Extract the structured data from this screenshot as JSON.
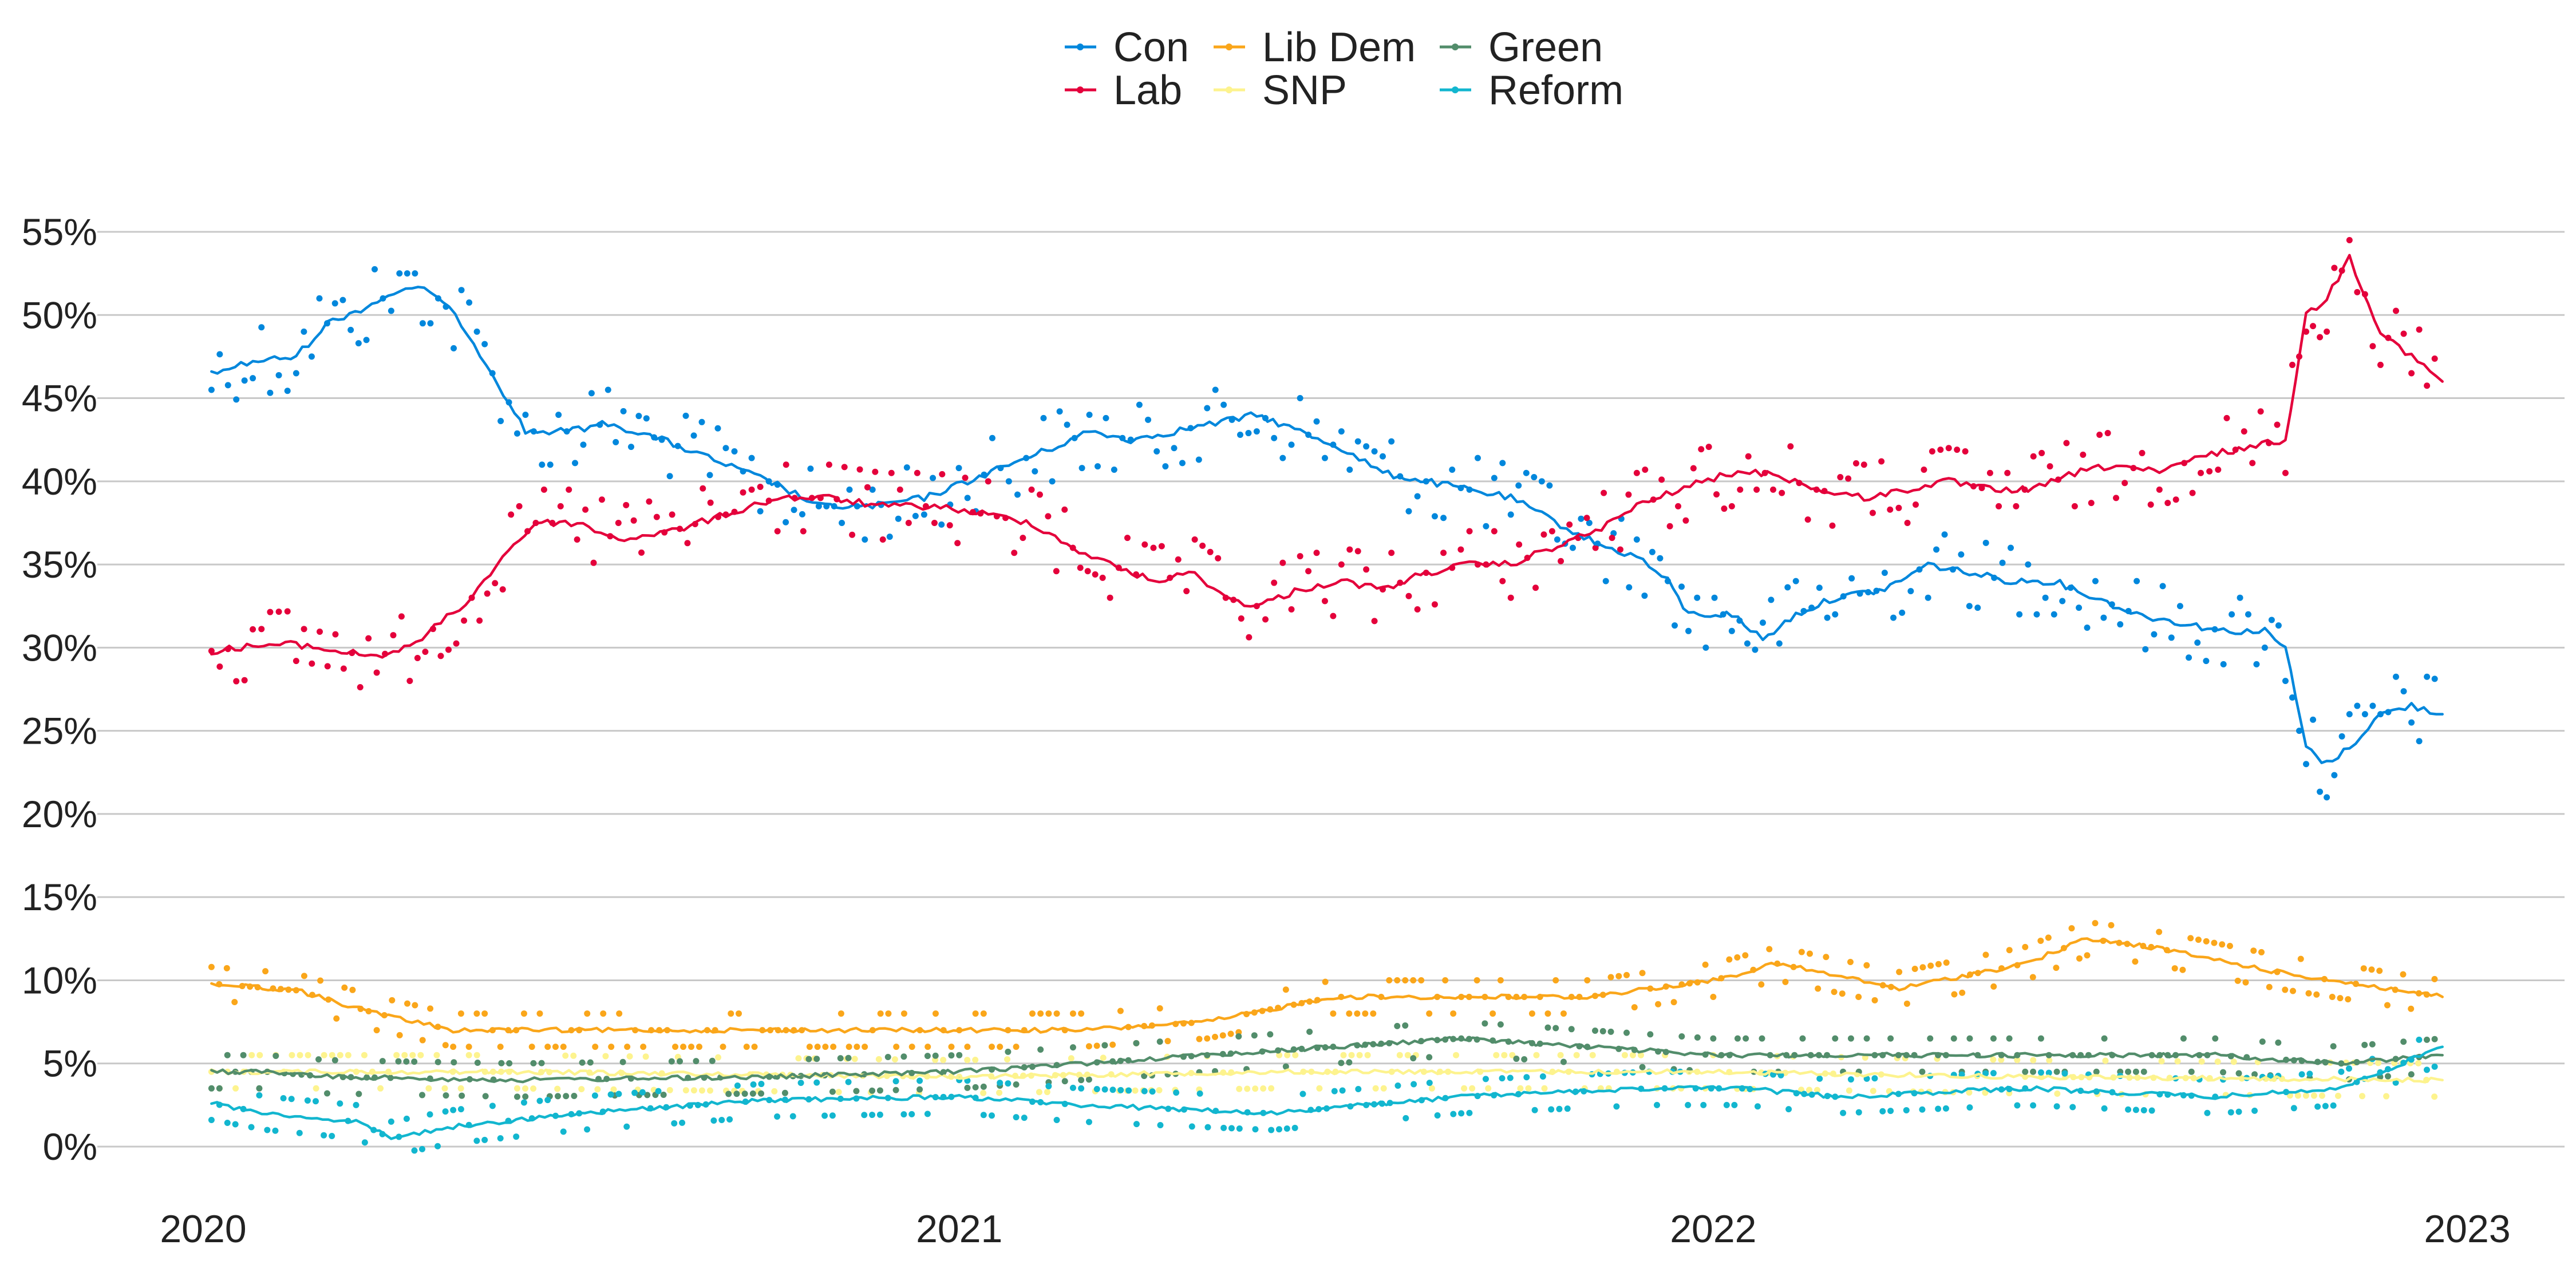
{
  "chart_data": {
    "type": "line",
    "title": "",
    "xlabel": "",
    "ylabel": "",
    "legend_position": "top-center",
    "grid": "horizontal",
    "x_range": [
      "2020-01-01",
      "2023-01-01"
    ],
    "ylim": [
      0,
      55
    ],
    "y_ticks": [
      {
        "value": 0,
        "label": "0%"
      },
      {
        "value": 5,
        "label": "5%"
      },
      {
        "value": 10,
        "label": "10%"
      },
      {
        "value": 15,
        "label": "15%"
      },
      {
        "value": 20,
        "label": "20%"
      },
      {
        "value": 25,
        "label": "25%"
      },
      {
        "value": 30,
        "label": "30%"
      },
      {
        "value": 35,
        "label": "35%"
      },
      {
        "value": 40,
        "label": "40%"
      },
      {
        "value": 45,
        "label": "45%"
      },
      {
        "value": 50,
        "label": "50%"
      },
      {
        "value": 55,
        "label": "55%"
      }
    ],
    "x_ticks": [
      {
        "date": "2020-01-01",
        "label": "2020"
      },
      {
        "date": "2021-01-01",
        "label": "2021"
      },
      {
        "date": "2022-01-01",
        "label": "2022"
      },
      {
        "date": "2023-01-01",
        "label": "2023"
      }
    ],
    "series": [
      {
        "name": "Con",
        "color": "#0087DC",
        "points": [
          [
            "2020-01-05",
            46.5
          ],
          [
            "2020-01-25",
            47.2
          ],
          [
            "2020-02-15",
            47.5
          ],
          [
            "2020-03-01",
            49.5
          ],
          [
            "2020-03-20",
            50.5
          ],
          [
            "2020-04-05",
            51.5
          ],
          [
            "2020-04-20",
            51.5
          ],
          [
            "2020-05-05",
            49.5
          ],
          [
            "2020-05-20",
            46.5
          ],
          [
            "2020-06-05",
            43
          ],
          [
            "2020-06-25",
            43
          ],
          [
            "2020-07-15",
            43.5
          ],
          [
            "2020-08-10",
            42.5
          ],
          [
            "2020-09-10",
            41
          ],
          [
            "2020-10-05",
            39.8
          ],
          [
            "2020-10-25",
            38.5
          ],
          [
            "2020-11-20",
            38.5
          ],
          [
            "2020-12-15",
            39
          ],
          [
            "2021-01-05",
            40
          ],
          [
            "2021-01-25",
            41
          ],
          [
            "2021-02-15",
            42
          ],
          [
            "2021-03-05",
            43
          ],
          [
            "2021-03-25",
            42.5
          ],
          [
            "2021-04-15",
            43
          ],
          [
            "2021-05-05",
            43.5
          ],
          [
            "2021-05-25",
            44
          ],
          [
            "2021-06-15",
            43
          ],
          [
            "2021-07-05",
            42
          ],
          [
            "2021-07-25",
            40.5
          ],
          [
            "2021-08-15",
            40
          ],
          [
            "2021-09-05",
            39.5
          ],
          [
            "2021-09-25",
            39
          ],
          [
            "2021-10-10",
            38
          ],
          [
            "2021-10-25",
            37
          ],
          [
            "2021-11-10",
            36
          ],
          [
            "2021-11-25",
            35.5
          ],
          [
            "2021-12-10",
            34
          ],
          [
            "2021-12-20",
            32
          ],
          [
            "2022-01-10",
            32
          ],
          [
            "2022-01-25",
            30.5
          ],
          [
            "2022-02-10",
            32
          ],
          [
            "2022-03-01",
            33
          ],
          [
            "2022-03-25",
            33.5
          ],
          [
            "2022-04-15",
            35
          ],
          [
            "2022-05-05",
            34.5
          ],
          [
            "2022-05-25",
            34
          ],
          [
            "2022-06-15",
            34
          ],
          [
            "2022-07-05",
            33
          ],
          [
            "2022-07-25",
            32
          ],
          [
            "2022-08-15",
            31.5
          ],
          [
            "2022-09-05",
            31
          ],
          [
            "2022-09-25",
            31
          ],
          [
            "2022-10-05",
            30
          ],
          [
            "2022-10-15",
            24
          ],
          [
            "2022-10-25",
            23
          ],
          [
            "2022-11-05",
            24
          ],
          [
            "2022-11-20",
            26
          ],
          [
            "2022-12-05",
            26.5
          ],
          [
            "2022-12-20",
            26
          ]
        ]
      },
      {
        "name": "Lab",
        "color": "#E4003B",
        "points": [
          [
            "2020-01-05",
            29.8
          ],
          [
            "2020-01-25",
            30.1
          ],
          [
            "2020-02-15",
            30.2
          ],
          [
            "2020-03-05",
            29.8
          ],
          [
            "2020-03-25",
            29.5
          ],
          [
            "2020-04-10",
            30
          ],
          [
            "2020-04-25",
            31.5
          ],
          [
            "2020-05-10",
            33
          ],
          [
            "2020-05-25",
            35.5
          ],
          [
            "2020-06-10",
            37.5
          ],
          [
            "2020-06-30",
            37.5
          ],
          [
            "2020-07-20",
            36.5
          ],
          [
            "2020-08-15",
            37
          ],
          [
            "2020-09-10",
            38
          ],
          [
            "2020-10-05",
            39
          ],
          [
            "2020-10-30",
            39
          ],
          [
            "2020-11-25",
            38.5
          ],
          [
            "2020-12-20",
            38.5
          ],
          [
            "2021-01-15",
            38
          ],
          [
            "2021-02-05",
            37.5
          ],
          [
            "2021-02-25",
            36
          ],
          [
            "2021-03-15",
            35
          ],
          [
            "2021-04-05",
            34
          ],
          [
            "2021-04-25",
            34.5
          ],
          [
            "2021-05-10",
            33
          ],
          [
            "2021-05-25",
            32.5
          ],
          [
            "2021-06-15",
            33.5
          ],
          [
            "2021-07-05",
            34
          ],
          [
            "2021-07-25",
            33.5
          ],
          [
            "2021-08-15",
            34.5
          ],
          [
            "2021-09-05",
            35
          ],
          [
            "2021-09-25",
            35
          ],
          [
            "2021-10-15",
            36
          ],
          [
            "2021-11-05",
            37
          ],
          [
            "2021-11-25",
            38.5
          ],
          [
            "2021-12-15",
            39.5
          ],
          [
            "2022-01-10",
            40.5
          ],
          [
            "2022-01-30",
            40.5
          ],
          [
            "2022-02-20",
            39.5
          ],
          [
            "2022-03-15",
            39
          ],
          [
            "2022-04-05",
            39.5
          ],
          [
            "2022-04-25",
            40
          ],
          [
            "2022-05-15",
            39.5
          ],
          [
            "2022-06-05",
            39.5
          ],
          [
            "2022-06-25",
            40.5
          ],
          [
            "2022-07-15",
            41
          ],
          [
            "2022-08-05",
            40.5
          ],
          [
            "2022-08-25",
            41.5
          ],
          [
            "2022-09-15",
            42
          ],
          [
            "2022-10-05",
            42.5
          ],
          [
            "2022-10-15",
            50
          ],
          [
            "2022-10-25",
            51
          ],
          [
            "2022-11-05",
            53.5
          ],
          [
            "2022-11-20",
            49
          ],
          [
            "2022-12-05",
            47.5
          ],
          [
            "2022-12-20",
            46
          ]
        ]
      },
      {
        "name": "Lib Dem",
        "color": "#FAA61A",
        "points": [
          [
            "2020-01-05",
            9.8
          ],
          [
            "2020-02-15",
            9.4
          ],
          [
            "2020-03-25",
            8
          ],
          [
            "2020-05-01",
            7
          ],
          [
            "2020-07-01",
            7
          ],
          [
            "2020-09-01",
            7
          ],
          [
            "2020-11-01",
            7
          ],
          [
            "2021-01-01",
            7
          ],
          [
            "2021-03-01",
            7
          ],
          [
            "2021-05-01",
            7.5
          ],
          [
            "2021-07-01",
            9
          ],
          [
            "2021-09-01",
            9
          ],
          [
            "2021-11-01",
            9
          ],
          [
            "2022-01-01",
            10
          ],
          [
            "2022-02-01",
            11
          ],
          [
            "2022-04-01",
            9.5
          ],
          [
            "2022-06-01",
            11
          ],
          [
            "2022-07-01",
            12.5
          ],
          [
            "2022-08-01",
            12
          ],
          [
            "2022-10-01",
            10.5
          ],
          [
            "2022-12-20",
            9
          ]
        ]
      },
      {
        "name": "SNP",
        "color": "#FDF38E",
        "points": [
          [
            "2020-01-05",
            4.5
          ],
          [
            "2020-06-01",
            4.5
          ],
          [
            "2021-01-01",
            4.2
          ],
          [
            "2021-06-01",
            4.5
          ],
          [
            "2022-01-01",
            4.5
          ],
          [
            "2022-06-01",
            4.2
          ],
          [
            "2022-12-20",
            4
          ]
        ]
      },
      {
        "name": "Green",
        "color": "#528D6B",
        "points": [
          [
            "2020-01-05",
            4.5
          ],
          [
            "2020-02-01",
            4.5
          ],
          [
            "2020-03-01",
            4.2
          ],
          [
            "2020-06-01",
            4
          ],
          [
            "2020-10-01",
            4.2
          ],
          [
            "2021-01-01",
            4.5
          ],
          [
            "2021-03-01",
            5
          ],
          [
            "2021-05-01",
            5.5
          ],
          [
            "2021-07-01",
            6
          ],
          [
            "2021-09-01",
            6.5
          ],
          [
            "2021-11-01",
            6
          ],
          [
            "2022-01-01",
            5.5
          ],
          [
            "2022-03-01",
            5.5
          ],
          [
            "2022-06-01",
            5.5
          ],
          [
            "2022-09-01",
            5.5
          ],
          [
            "2022-11-01",
            5
          ],
          [
            "2022-12-20",
            5.5
          ]
        ]
      },
      {
        "name": "Reform",
        "color": "#12B6CF",
        "points": [
          [
            "2020-01-05",
            2.6
          ],
          [
            "2020-02-01",
            2
          ],
          [
            "2020-03-15",
            1.5
          ],
          [
            "2020-04-01",
            0.5
          ],
          [
            "2020-05-01",
            1.2
          ],
          [
            "2020-07-01",
            2
          ],
          [
            "2020-10-01",
            2.8
          ],
          [
            "2021-01-01",
            3
          ],
          [
            "2021-03-01",
            2.5
          ],
          [
            "2021-06-01",
            2
          ],
          [
            "2021-09-01",
            3
          ],
          [
            "2021-12-01",
            3.5
          ],
          [
            "2022-01-15",
            3.5
          ],
          [
            "2022-03-01",
            3
          ],
          [
            "2022-06-01",
            3.5
          ],
          [
            "2022-09-01",
            3
          ],
          [
            "2022-11-01",
            3.5
          ],
          [
            "2022-12-20",
            6
          ]
        ]
      }
    ]
  }
}
